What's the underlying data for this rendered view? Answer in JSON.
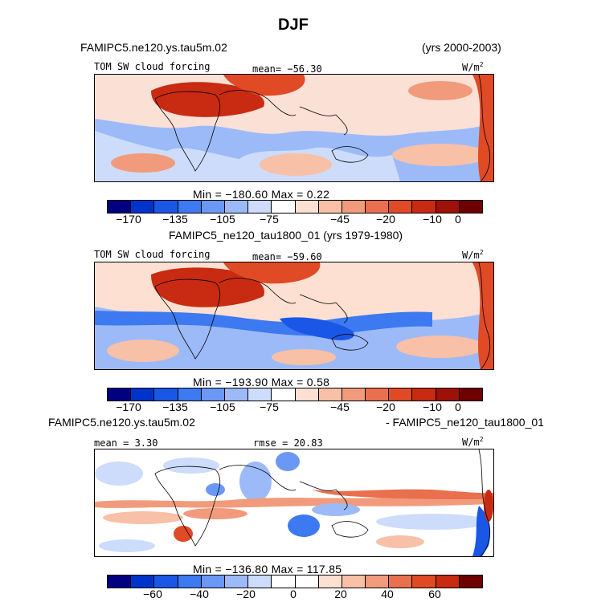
{
  "figure_title": "DJF",
  "panel1": {
    "case_label": "FAMIPC5.ne120.ys.tau5m.02",
    "years": "(yrs 2000-2003)",
    "variable": "TOM SW cloud forcing",
    "mean_text": "mean= −56.30",
    "units": "W/m",
    "units_exp": "2",
    "minmax_text": "Min = −180.60  Max =   0.22"
  },
  "panel2": {
    "case_label": "FAMIPC5_ne120_tau1800_01 (yrs 1979-1980)",
    "variable": "TOM SW cloud forcing",
    "mean_text": "mean= −59.60",
    "units": "W/m",
    "units_exp": "2",
    "minmax_text": "Min = −193.90  Max =   0.58"
  },
  "panel3": {
    "case_label_left": "FAMIPC5.ne120.ys.tau5m.02",
    "case_label_right": "- FAMIPC5_ne120_tau1800_01",
    "mean_text": "mean =   3.30",
    "rmse_text": "rmse =  20.83",
    "units": "W/m",
    "units_exp": "2",
    "minmax_text": "Min = −136.80  Max = 117.85"
  },
  "colorbar1": {
    "colors": [
      "#000080",
      "#0033cc",
      "#1a57e6",
      "#3d79f0",
      "#6b98f5",
      "#9cbaf8",
      "#cddcfb",
      "#ffffff",
      "#fde0d2",
      "#f8c0a6",
      "#f19b7c",
      "#ea6f4e",
      "#e04a25",
      "#c82a12",
      "#9e1008",
      "#6e0000"
    ],
    "tick_labels": [
      "−170",
      "−135",
      "−105",
      "−75",
      "−45",
      "−20",
      "−10",
      "0"
    ]
  },
  "colorbar2": {
    "colors": [
      "#000080",
      "#0033cc",
      "#1a57e6",
      "#3d79f0",
      "#6b98f5",
      "#9cbaf8",
      "#cddcfb",
      "#ffffff",
      "#fde0d2",
      "#f8c0a6",
      "#f19b7c",
      "#ea6f4e",
      "#e04a25",
      "#c82a12",
      "#9e1008",
      "#6e0000"
    ],
    "tick_labels": [
      "−170",
      "−135",
      "−105",
      "−75",
      "−45",
      "−20",
      "−10",
      "0"
    ]
  },
  "colorbar3": {
    "colors": [
      "#000080",
      "#0033cc",
      "#1a57e6",
      "#3d79f0",
      "#6b98f5",
      "#9cbaf8",
      "#cddcfb",
      "#ffffff",
      "#ffffff",
      "#fde0d2",
      "#f8c0a6",
      "#f19b7c",
      "#ea6f4e",
      "#e04a25",
      "#c82a12",
      "#6e0000"
    ],
    "tick_labels": [
      "−60",
      "−40",
      "−20",
      "0",
      "20",
      "40",
      "60"
    ]
  },
  "chart_data": [
    {
      "type": "heatmap",
      "title": "TOM SW cloud forcing",
      "case": "FAMIPC5.ne120.ys.tau5m.02",
      "years": "2000-2003",
      "season": "DJF",
      "units": "W/m2",
      "mean": -56.3,
      "min": -180.6,
      "max": 0.22,
      "contour_levels": [
        -170,
        -150,
        -135,
        -120,
        -105,
        -90,
        -75,
        -60,
        -45,
        -30,
        -20,
        -15,
        -10,
        -5,
        0
      ]
    },
    {
      "type": "heatmap",
      "title": "TOM SW cloud forcing",
      "case": "FAMIPC5_ne120_tau1800_01",
      "years": "1979-1980",
      "season": "DJF",
      "units": "W/m2",
      "mean": -59.6,
      "min": -193.9,
      "max": 0.58,
      "contour_levels": [
        -170,
        -150,
        -135,
        -120,
        -105,
        -90,
        -75,
        -60,
        -45,
        -30,
        -20,
        -15,
        -10,
        -5,
        0
      ]
    },
    {
      "type": "heatmap",
      "title": "FAMIPC5.ne120.ys.tau5m.02 - FAMIPC5_ne120_tau1800_01",
      "season": "DJF",
      "units": "W/m2",
      "mean": 3.3,
      "rmse": 20.83,
      "min": -136.8,
      "max": 117.85,
      "contour_levels": [
        -70,
        -60,
        -50,
        -40,
        -30,
        -20,
        -10,
        0,
        10,
        20,
        30,
        40,
        50,
        60,
        70
      ]
    }
  ]
}
